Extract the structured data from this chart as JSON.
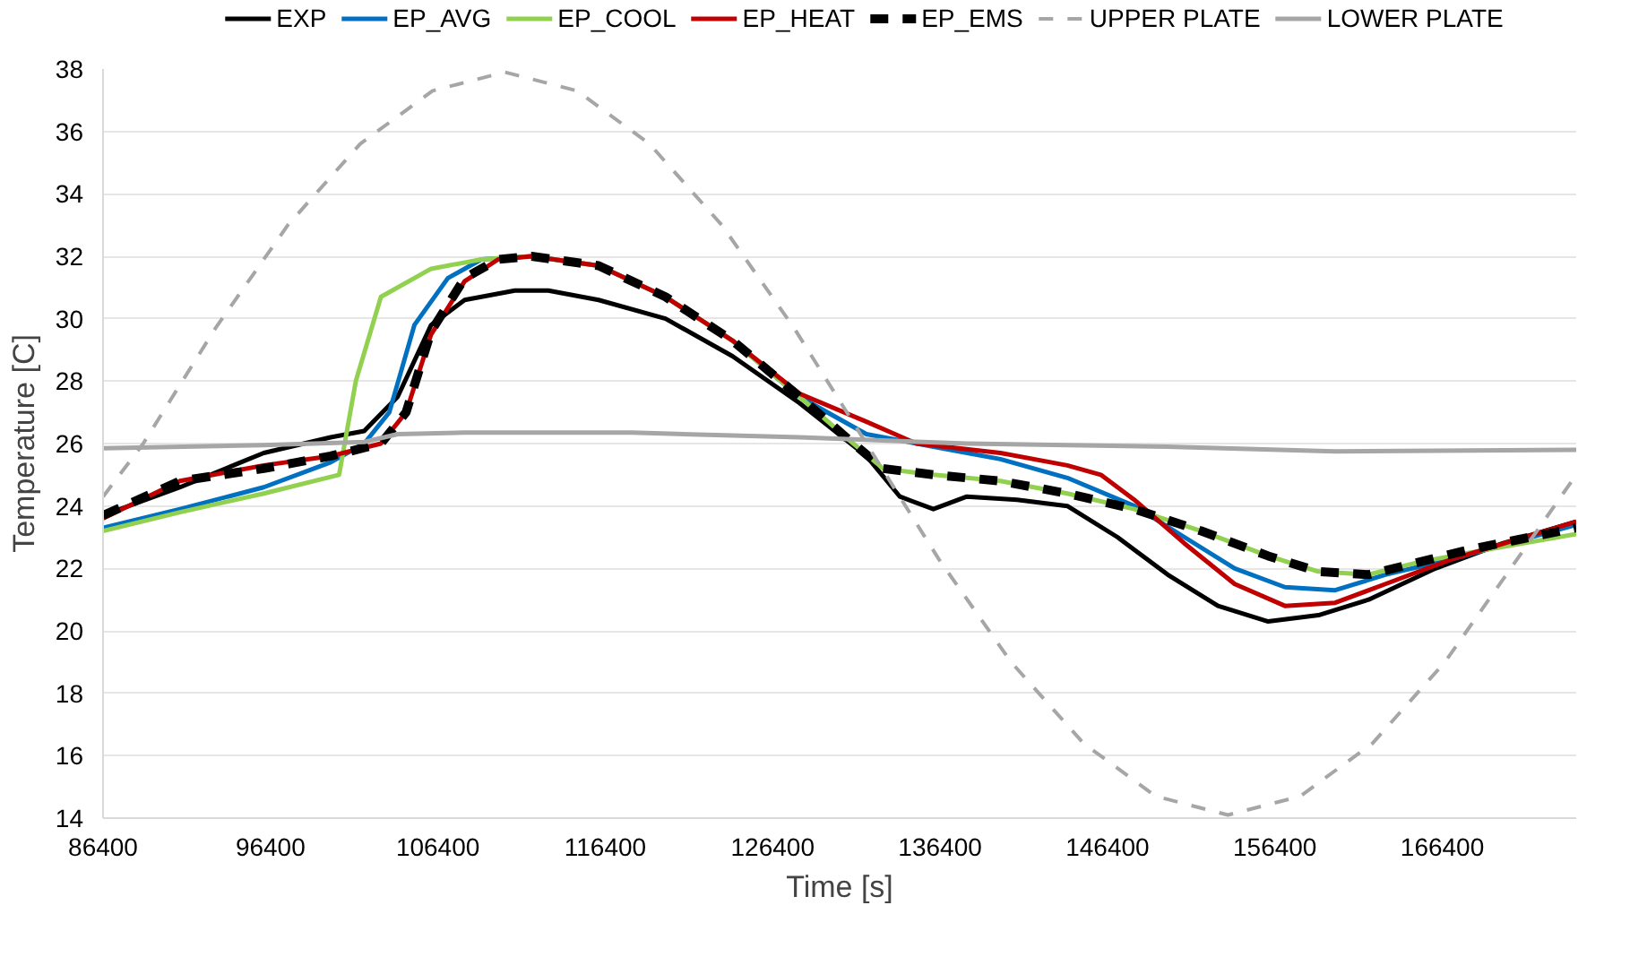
{
  "chart_data": {
    "type": "line",
    "xlabel": "Time [s]",
    "ylabel": "Temperature [C]",
    "xlim": [
      86400,
      174400
    ],
    "xticks": [
      86400,
      96400,
      106400,
      116400,
      126400,
      136400,
      146400,
      156400,
      166400
    ],
    "ylim": [
      14,
      38
    ],
    "yticks": [
      14,
      16,
      18,
      20,
      22,
      24,
      26,
      28,
      30,
      32,
      34,
      36,
      38
    ],
    "grid": "y",
    "legend": "top",
    "line_style": "solid",
    "series": [
      {
        "name": "EXP",
        "color": "#000000",
        "x": [
          86400,
          91000,
          96000,
          100000,
          102000,
          104000,
          106000,
          108000,
          111000,
          113000,
          116000,
          120000,
          124000,
          128000,
          132000,
          134000,
          136000,
          138000,
          141000,
          144000,
          147000,
          150000,
          153000,
          156000,
          159000,
          162000,
          166000,
          170000,
          174400
        ],
        "values": [
          23.7,
          24.6,
          25.7,
          26.2,
          26.4,
          27.5,
          29.8,
          30.6,
          30.9,
          30.9,
          30.6,
          30.0,
          28.8,
          27.3,
          25.6,
          24.3,
          23.9,
          24.3,
          24.2,
          24.0,
          23.0,
          21.8,
          20.8,
          20.3,
          20.5,
          21.0,
          22.0,
          22.8,
          23.5
        ]
      },
      {
        "name": "EP_AVG",
        "color": "#0070c0",
        "x": [
          86400,
          91000,
          96000,
          100000,
          102000,
          103500,
          105000,
          107000,
          109000,
          112000,
          116000,
          120000,
          124000,
          128000,
          132000,
          136000,
          140000,
          144000,
          148000,
          151000,
          154000,
          157000,
          160000,
          163000,
          167000,
          174400
        ],
        "values": [
          23.3,
          23.9,
          24.6,
          25.4,
          26.0,
          27.0,
          29.8,
          31.3,
          31.9,
          32.0,
          31.7,
          30.7,
          29.3,
          27.5,
          26.3,
          25.9,
          25.5,
          24.9,
          24.0,
          23.0,
          22.0,
          21.4,
          21.3,
          21.8,
          22.3,
          23.4
        ]
      },
      {
        "name": "EP_COOL",
        "color": "#92d050",
        "x": [
          86400,
          91000,
          96000,
          100500,
          101500,
          103000,
          106000,
          109000,
          112000,
          116000,
          120000,
          124000,
          128000,
          131000,
          133000,
          136000,
          140000,
          144000,
          148000,
          152000,
          156000,
          159000,
          162000,
          165000,
          168000,
          174400
        ],
        "values": [
          23.2,
          23.8,
          24.4,
          25.0,
          28.0,
          30.7,
          31.6,
          31.9,
          32.0,
          31.7,
          30.7,
          29.3,
          27.5,
          26.1,
          25.2,
          25.0,
          24.8,
          24.4,
          23.9,
          23.2,
          22.4,
          21.9,
          21.8,
          22.2,
          22.5,
          23.1
        ]
      },
      {
        "name": "EP_HEAT",
        "color": "#c00000",
        "x": [
          86400,
          91000,
          96000,
          100000,
          103000,
          104500,
          106000,
          108000,
          110000,
          112000,
          116000,
          120000,
          124000,
          128000,
          132000,
          135000,
          140000,
          144000,
          146000,
          148000,
          151000,
          154000,
          157000,
          160000,
          163000,
          167000,
          174400
        ],
        "values": [
          23.6,
          24.8,
          25.3,
          25.6,
          26.0,
          27.0,
          29.5,
          31.2,
          31.9,
          32.0,
          31.7,
          30.7,
          29.3,
          27.6,
          26.7,
          26.0,
          25.7,
          25.3,
          25.0,
          24.2,
          22.8,
          21.5,
          20.8,
          20.9,
          21.5,
          22.3,
          23.5
        ]
      },
      {
        "name": "EP_EMS",
        "color": "#000000",
        "line_style": "dashed",
        "x": [
          86400,
          91000,
          96000,
          100000,
          103000,
          104500,
          106000,
          108000,
          110000,
          112000,
          116000,
          120000,
          124000,
          128000,
          131000,
          133000,
          136000,
          140000,
          144000,
          148000,
          152000,
          156000,
          159000,
          162000,
          165000,
          168000,
          174400
        ],
        "values": [
          23.7,
          24.8,
          25.2,
          25.6,
          26.0,
          27.0,
          29.6,
          31.3,
          31.9,
          32.0,
          31.7,
          30.7,
          29.3,
          27.5,
          26.1,
          25.2,
          25.0,
          24.8,
          24.4,
          23.9,
          23.2,
          22.4,
          21.9,
          21.8,
          22.2,
          22.6,
          23.3
        ]
      },
      {
        "name": "UPPER PLATE",
        "color": "#a6a6a6",
        "line_style": "dashed",
        "x": [
          86400,
          88800,
          93120,
          97440,
          101760,
          106080,
          110400,
          114720,
          119040,
          123360,
          127680,
          132000,
          136320,
          140640,
          144960,
          149280,
          153600,
          157920,
          162240,
          166560,
          170880,
          174400
        ],
        "values": [
          24.3,
          26.0,
          29.7,
          33.0,
          35.6,
          37.3,
          37.9,
          37.3,
          35.6,
          33.0,
          29.7,
          26.0,
          22.3,
          19.0,
          16.4,
          14.7,
          14.1,
          14.7,
          16.4,
          19.0,
          22.3,
          25.0
        ]
      },
      {
        "name": "LOWER PLATE",
        "color": "#a6a6a6",
        "x": [
          86400,
          96000,
          102000,
          104000,
          108000,
          118000,
          128000,
          138000,
          150000,
          160000,
          174400
        ],
        "values": [
          25.85,
          25.95,
          26.05,
          26.3,
          26.35,
          26.35,
          26.2,
          26.0,
          25.9,
          25.75,
          25.8
        ]
      }
    ]
  }
}
